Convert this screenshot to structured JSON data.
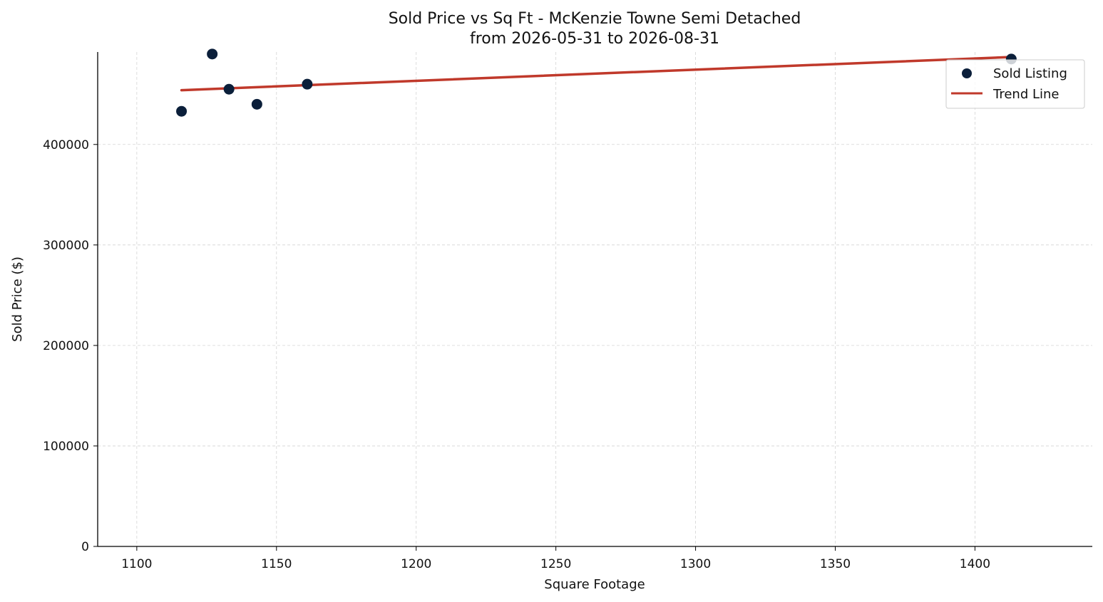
{
  "chart_data": {
    "type": "scatter",
    "title": "Sold Price vs Sq Ft - McKenzie Towne Semi Detached",
    "subtitle": "from 2026-05-31 to 2026-08-31",
    "xlabel": "Square Footage",
    "ylabel": "Sold Price ($)",
    "xlim": [
      1086,
      1442
    ],
    "ylim": [
      0,
      492000
    ],
    "x_ticks": [
      1100,
      1150,
      1200,
      1250,
      1300,
      1350,
      1400
    ],
    "y_ticks": [
      0,
      100000,
      200000,
      300000,
      400000
    ],
    "grid": true,
    "legend_position": "top-right",
    "series": [
      {
        "name": "Sold Listing",
        "kind": "scatter",
        "color": "#0b1f3a",
        "points": [
          {
            "x": 1116,
            "y": 433000
          },
          {
            "x": 1127,
            "y": 490000
          },
          {
            "x": 1133,
            "y": 455000
          },
          {
            "x": 1143,
            "y": 440000
          },
          {
            "x": 1161,
            "y": 460000
          },
          {
            "x": 1413,
            "y": 485000
          }
        ]
      },
      {
        "name": "Trend Line",
        "kind": "line",
        "color": "#c0392b",
        "points": [
          {
            "x": 1116,
            "y": 454000
          },
          {
            "x": 1413,
            "y": 487000
          }
        ]
      }
    ]
  }
}
